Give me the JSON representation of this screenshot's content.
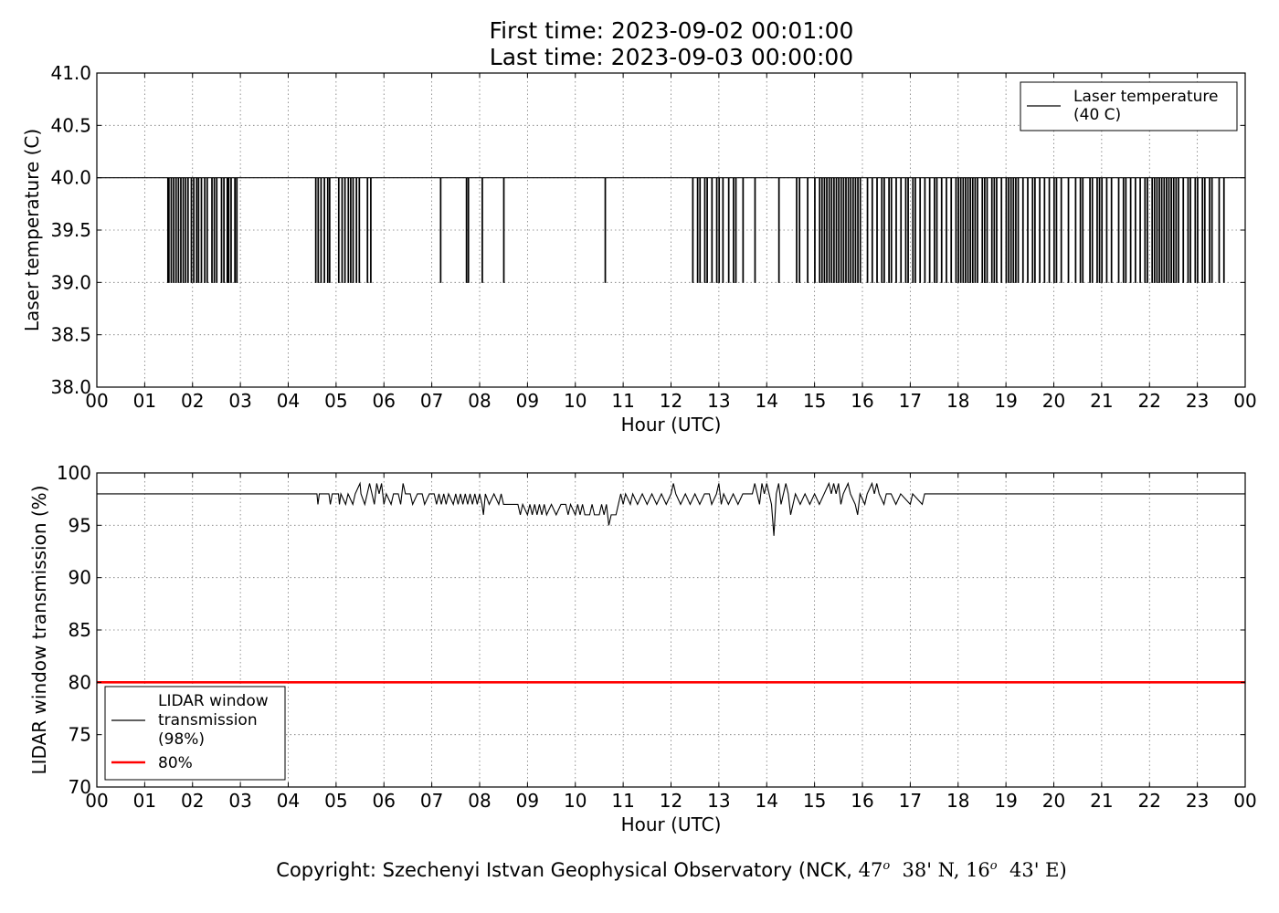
{
  "title_line1": "First time: 2023-09-02 00:01:00",
  "title_line2": "Last time: 2023-09-03 00:00:00",
  "copyright": {
    "text1": "Copyright: Szechenyi Istvan Geophysical Observatory (NCK, ",
    "lat_deg": "47",
    "lat_rest": "38' N, ",
    "lon_deg": "16",
    "lon_rest": "43' E)",
    "degree_symbol": "o"
  },
  "colors": {
    "series": "#000000",
    "threshold": "#ff0000",
    "grid": "#777777"
  },
  "chart_data": [
    {
      "type": "line",
      "ylabel": "Laser temperature (C)",
      "xlabel": "Hour (UTC)",
      "xlim": [
        0,
        24
      ],
      "ylim": [
        38.0,
        41.0
      ],
      "xticks": [
        "00",
        "01",
        "02",
        "03",
        "04",
        "05",
        "06",
        "07",
        "08",
        "09",
        "10",
        "11",
        "12",
        "13",
        "14",
        "15",
        "16",
        "17",
        "18",
        "19",
        "20",
        "21",
        "22",
        "23",
        "00"
      ],
      "yticks": [
        "38.0",
        "38.5",
        "39.0",
        "39.5",
        "40.0",
        "40.5",
        "41.0"
      ],
      "grid": true,
      "legend_position": "top-right",
      "series": [
        {
          "name": "Laser temperature\n(40 C)",
          "color": "#000000",
          "baseline": 40.0,
          "dip_value": 39.0,
          "dip_hours": [
            1.48,
            1.5,
            1.55,
            1.6,
            1.65,
            1.7,
            1.75,
            1.8,
            1.85,
            1.9,
            1.97,
            2.02,
            2.08,
            2.12,
            2.18,
            2.25,
            2.3,
            2.4,
            2.45,
            2.5,
            2.6,
            2.65,
            2.72,
            2.75,
            2.8,
            2.88,
            2.92,
            4.57,
            4.62,
            4.68,
            4.75,
            4.82,
            4.86,
            5.05,
            5.12,
            5.18,
            5.25,
            5.3,
            5.35,
            5.42,
            5.48,
            5.65,
            5.72,
            7.18,
            7.72,
            7.76,
            8.05,
            8.5,
            10.62,
            12.45,
            12.55,
            12.6,
            12.7,
            12.75,
            12.85,
            12.95,
            13.0,
            13.08,
            13.2,
            13.3,
            13.35,
            13.5,
            13.75,
            14.25,
            14.62,
            14.68,
            14.85,
            15.0,
            15.1,
            15.15,
            15.2,
            15.25,
            15.3,
            15.35,
            15.4,
            15.45,
            15.5,
            15.55,
            15.6,
            15.65,
            15.7,
            15.75,
            15.8,
            15.85,
            15.9,
            15.95,
            16.1,
            16.2,
            16.3,
            16.4,
            16.45,
            16.55,
            16.6,
            16.7,
            16.8,
            16.9,
            16.95,
            17.05,
            17.1,
            17.2,
            17.3,
            17.4,
            17.5,
            17.55,
            17.65,
            17.75,
            17.85,
            17.95,
            18.0,
            18.05,
            18.1,
            18.15,
            18.2,
            18.25,
            18.3,
            18.35,
            18.4,
            18.5,
            18.55,
            18.6,
            18.7,
            18.75,
            18.8,
            18.9,
            19.0,
            19.05,
            19.1,
            19.15,
            19.2,
            19.25,
            19.35,
            19.45,
            19.55,
            19.6,
            19.7,
            19.8,
            19.9,
            20.0,
            20.05,
            20.15,
            20.3,
            20.45,
            20.55,
            20.6,
            20.75,
            20.8,
            20.9,
            20.95,
            21.0,
            21.1,
            21.2,
            21.35,
            21.45,
            21.5,
            21.6,
            21.7,
            21.8,
            21.9,
            21.95,
            22.05,
            22.1,
            22.15,
            22.2,
            22.25,
            22.3,
            22.35,
            22.4,
            22.45,
            22.5,
            22.55,
            22.6,
            22.7,
            22.8,
            22.85,
            22.95,
            23.0,
            23.1,
            23.15,
            23.25,
            23.3,
            23.45,
            23.55
          ]
        }
      ]
    },
    {
      "type": "line",
      "ylabel": "LIDAR window transmission (%)",
      "xlabel": "Hour (UTC)",
      "xlim": [
        0,
        24
      ],
      "ylim": [
        70,
        100
      ],
      "xticks": [
        "00",
        "01",
        "02",
        "03",
        "04",
        "05",
        "06",
        "07",
        "08",
        "09",
        "10",
        "11",
        "12",
        "13",
        "14",
        "15",
        "16",
        "17",
        "18",
        "19",
        "20",
        "21",
        "22",
        "23",
        "00"
      ],
      "yticks": [
        "70",
        "75",
        "80",
        "85",
        "90",
        "95",
        "100"
      ],
      "grid": true,
      "legend_position": "bottom-left",
      "series": [
        {
          "name": "LIDAR window\ntransmission\n(98%)",
          "color": "#000000",
          "baseline": 98,
          "points": [
            [
              4.6,
              98
            ],
            [
              4.62,
              97
            ],
            [
              4.65,
              98
            ],
            [
              4.85,
              98
            ],
            [
              4.88,
              97
            ],
            [
              4.92,
              98
            ],
            [
              5.05,
              98
            ],
            [
              5.07,
              97
            ],
            [
              5.1,
              98
            ],
            [
              5.2,
              97
            ],
            [
              5.25,
              98
            ],
            [
              5.35,
              97
            ],
            [
              5.4,
              98
            ],
            [
              5.5,
              99
            ],
            [
              5.52,
              98
            ],
            [
              5.6,
              97
            ],
            [
              5.65,
              98
            ],
            [
              5.7,
              99
            ],
            [
              5.75,
              98
            ],
            [
              5.8,
              97
            ],
            [
              5.85,
              99
            ],
            [
              5.9,
              98
            ],
            [
              5.95,
              99
            ],
            [
              6.0,
              97
            ],
            [
              6.05,
              98
            ],
            [
              6.15,
              97
            ],
            [
              6.2,
              98
            ],
            [
              6.3,
              98
            ],
            [
              6.35,
              97
            ],
            [
              6.4,
              99
            ],
            [
              6.45,
              98
            ],
            [
              6.55,
              98
            ],
            [
              6.6,
              97
            ],
            [
              6.7,
              98
            ],
            [
              6.8,
              98
            ],
            [
              6.85,
              97
            ],
            [
              6.95,
              98
            ],
            [
              7.05,
              98
            ],
            [
              7.1,
              97
            ],
            [
              7.15,
              98
            ],
            [
              7.2,
              97
            ],
            [
              7.25,
              98
            ],
            [
              7.3,
              97
            ],
            [
              7.35,
              98
            ],
            [
              7.45,
              97
            ],
            [
              7.5,
              98
            ],
            [
              7.55,
              97
            ],
            [
              7.6,
              98
            ],
            [
              7.65,
              97
            ],
            [
              7.7,
              98
            ],
            [
              7.75,
              97
            ],
            [
              7.8,
              98
            ],
            [
              7.85,
              97
            ],
            [
              7.9,
              98
            ],
            [
              7.95,
              97
            ],
            [
              8.0,
              98
            ],
            [
              8.05,
              97
            ],
            [
              8.08,
              96
            ],
            [
              8.12,
              98
            ],
            [
              8.2,
              97
            ],
            [
              8.3,
              98
            ],
            [
              8.4,
              97
            ],
            [
              8.45,
              98
            ],
            [
              8.5,
              97
            ],
            [
              8.8,
              97
            ],
            [
              8.85,
              96
            ],
            [
              8.9,
              97
            ],
            [
              9.0,
              96
            ],
            [
              9.05,
              97
            ],
            [
              9.1,
              96
            ],
            [
              9.15,
              97
            ],
            [
              9.2,
              96
            ],
            [
              9.25,
              97
            ],
            [
              9.3,
              96
            ],
            [
              9.35,
              97
            ],
            [
              9.4,
              96
            ],
            [
              9.5,
              97
            ],
            [
              9.6,
              96
            ],
            [
              9.7,
              97
            ],
            [
              9.8,
              97
            ],
            [
              9.85,
              96
            ],
            [
              9.9,
              97
            ],
            [
              10.0,
              96
            ],
            [
              10.05,
              97
            ],
            [
              10.1,
              96
            ],
            [
              10.15,
              97
            ],
            [
              10.2,
              96
            ],
            [
              10.3,
              96
            ],
            [
              10.35,
              97
            ],
            [
              10.4,
              96
            ],
            [
              10.5,
              96
            ],
            [
              10.55,
              97
            ],
            [
              10.6,
              96
            ],
            [
              10.65,
              97
            ],
            [
              10.7,
              95
            ],
            [
              10.75,
              96
            ],
            [
              10.85,
              96
            ],
            [
              10.9,
              97
            ],
            [
              10.95,
              98
            ],
            [
              11.0,
              97
            ],
            [
              11.05,
              98
            ],
            [
              11.15,
              97
            ],
            [
              11.2,
              98
            ],
            [
              11.3,
              97
            ],
            [
              11.4,
              98
            ],
            [
              11.5,
              97
            ],
            [
              11.6,
              98
            ],
            [
              11.7,
              97
            ],
            [
              11.8,
              98
            ],
            [
              11.9,
              97
            ],
            [
              12.0,
              98
            ],
            [
              12.05,
              99
            ],
            [
              12.1,
              98
            ],
            [
              12.2,
              97
            ],
            [
              12.3,
              98
            ],
            [
              12.4,
              97
            ],
            [
              12.5,
              98
            ],
            [
              12.6,
              97
            ],
            [
              12.7,
              98
            ],
            [
              12.8,
              98
            ],
            [
              12.85,
              97
            ],
            [
              12.95,
              98
            ],
            [
              13.0,
              99
            ],
            [
              13.05,
              97
            ],
            [
              13.1,
              98
            ],
            [
              13.2,
              97
            ],
            [
              13.3,
              98
            ],
            [
              13.4,
              97
            ],
            [
              13.5,
              98
            ],
            [
              13.7,
              98
            ],
            [
              13.75,
              99
            ],
            [
              13.8,
              98
            ],
            [
              13.85,
              97
            ],
            [
              13.9,
              99
            ],
            [
              13.95,
              98
            ],
            [
              14.0,
              99
            ],
            [
              14.05,
              98
            ],
            [
              14.1,
              97
            ],
            [
              14.15,
              94
            ],
            [
              14.2,
              98
            ],
            [
              14.25,
              99
            ],
            [
              14.3,
              97
            ],
            [
              14.35,
              98
            ],
            [
              14.4,
              99
            ],
            [
              14.45,
              98
            ],
            [
              14.5,
              96
            ],
            [
              14.55,
              97
            ],
            [
              14.6,
              98
            ],
            [
              14.7,
              97
            ],
            [
              14.8,
              98
            ],
            [
              14.9,
              97
            ],
            [
              15.0,
              98
            ],
            [
              15.1,
              97
            ],
            [
              15.2,
              98
            ],
            [
              15.3,
              99
            ],
            [
              15.35,
              98
            ],
            [
              15.4,
              99
            ],
            [
              15.45,
              98
            ],
            [
              15.5,
              99
            ],
            [
              15.55,
              97
            ],
            [
              15.6,
              98
            ],
            [
              15.7,
              99
            ],
            [
              15.75,
              98
            ],
            [
              15.85,
              97
            ],
            [
              15.9,
              96
            ],
            [
              15.95,
              98
            ],
            [
              16.05,
              97
            ],
            [
              16.1,
              98
            ],
            [
              16.2,
              99
            ],
            [
              16.25,
              98
            ],
            [
              16.3,
              99
            ],
            [
              16.35,
              98
            ],
            [
              16.45,
              97
            ],
            [
              16.5,
              98
            ],
            [
              16.6,
              98
            ],
            [
              16.7,
              97
            ],
            [
              16.8,
              98
            ],
            [
              17.0,
              97
            ],
            [
              17.05,
              98
            ],
            [
              17.25,
              97
            ],
            [
              17.3,
              98
            ],
            [
              24,
              98
            ]
          ]
        },
        {
          "name": "80%",
          "color": "#ff0000",
          "constant": 80
        }
      ]
    }
  ]
}
